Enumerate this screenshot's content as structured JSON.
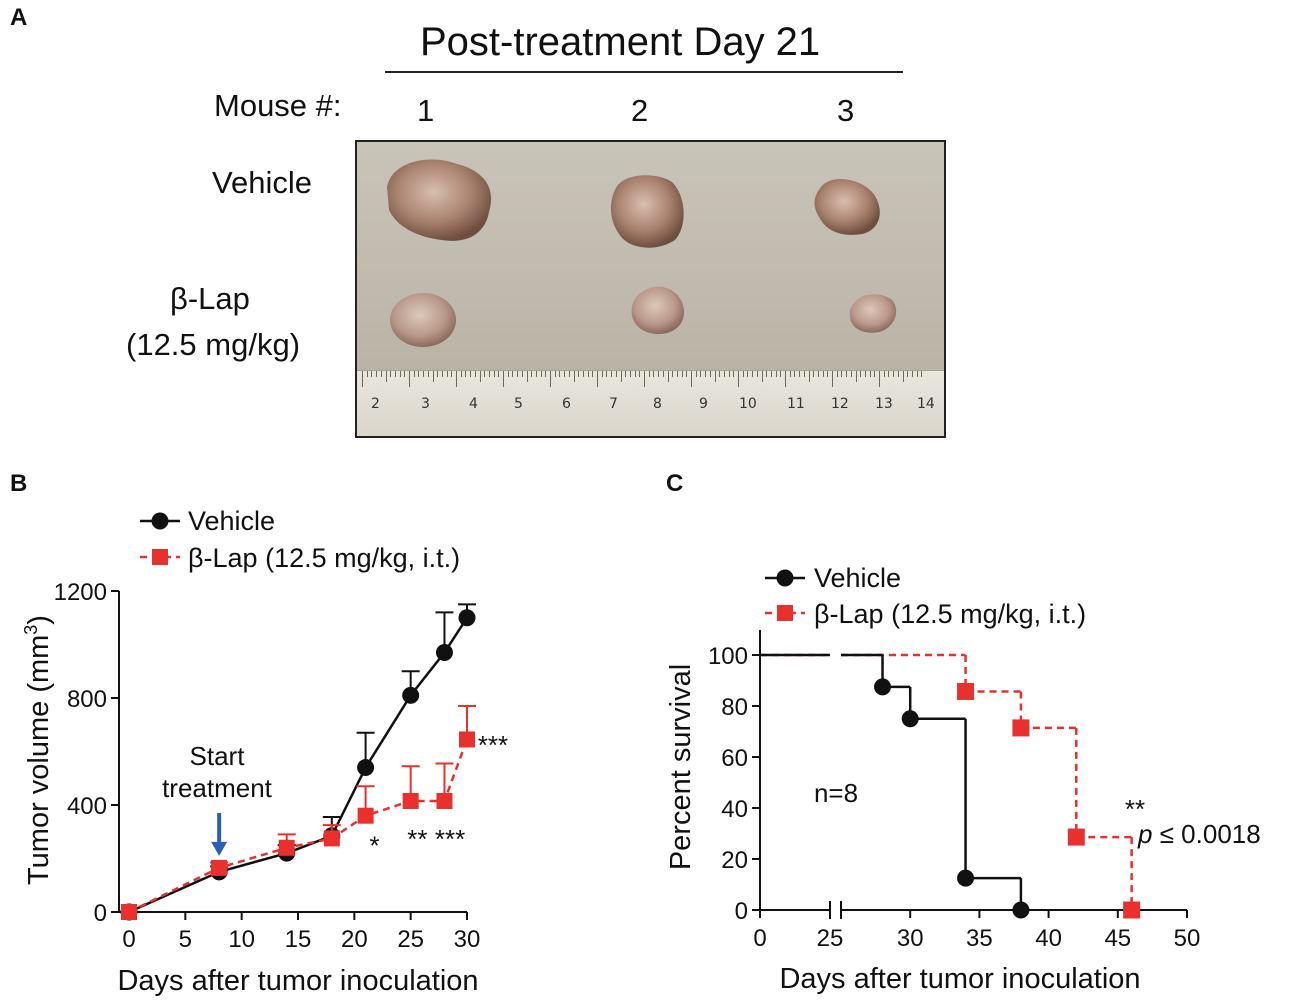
{
  "panel_a": {
    "letter": "A",
    "title": "Post-treatment Day 21",
    "mouse_label": "Mouse #:",
    "mice": [
      "1",
      "2",
      "3"
    ],
    "row_vehicle": "Vehicle",
    "row_drug_name": "β-Lap",
    "row_drug_dose": "(12.5 mg/kg)",
    "ruler_numbers": [
      "2",
      "3",
      "4",
      "5",
      "6",
      "7",
      "8",
      "9",
      "10",
      "11",
      "12",
      "13",
      "14"
    ]
  },
  "panel_b": {
    "letter": "B",
    "annotation_line1": "Start",
    "annotation_line2": "treatment",
    "arrow_color": "#2b5fb4"
  },
  "panel_c": {
    "letter": "C",
    "n_label": "n=8",
    "sig": "**",
    "p_symbol": "p",
    "p_rest": " ≤ 0.0018"
  },
  "colors": {
    "vehicle": "#111111",
    "drug": "#e8302c"
  },
  "chart_data": [
    {
      "type": "line",
      "panel": "B",
      "title": "",
      "xlabel": "Days after tumor inoculation",
      "ylabel": "Tumor volume (mm³)",
      "ylabel_main": "Tumor volume (mm",
      "ylabel_sup": "3",
      "ylabel_close": ")",
      "xlim": [
        0,
        30
      ],
      "ylim": [
        0,
        1200
      ],
      "xticks": [
        0,
        5,
        10,
        15,
        20,
        25,
        30
      ],
      "yticks": [
        0,
        400,
        800,
        1200
      ],
      "legend": "top-left",
      "series": [
        {
          "name": "Vehicle",
          "x": [
            0,
            8,
            14,
            18,
            21,
            25,
            28,
            30
          ],
          "y": [
            0,
            150,
            220,
            285,
            540,
            810,
            970,
            1100
          ],
          "err": [
            0,
            20,
            30,
            70,
            130,
            90,
            150,
            50
          ]
        },
        {
          "name": "β-Lap (12.5 mg/kg, i.t.)",
          "x": [
            0,
            8,
            14,
            18,
            21,
            25,
            28,
            30
          ],
          "y": [
            0,
            165,
            240,
            275,
            360,
            415,
            415,
            645
          ],
          "err": [
            0,
            20,
            50,
            50,
            110,
            130,
            140,
            125
          ]
        }
      ],
      "significance": [
        {
          "x": 21.8,
          "y": 215,
          "label": "*"
        },
        {
          "x": 25.6,
          "y": 240,
          "label": "**"
        },
        {
          "x": 28.5,
          "y": 240,
          "label": "***"
        },
        {
          "x": 32.3,
          "y": 590,
          "label": "***"
        }
      ],
      "annotation": {
        "x": 8,
        "y_top": 370,
        "y_bottom": 210
      }
    },
    {
      "type": "step",
      "panel": "C",
      "title": "",
      "xlabel": "Days after tumor inoculation",
      "ylabel": "Percent survival",
      "xlim": [
        0,
        50
      ],
      "ylim": [
        0,
        100
      ],
      "xticks": [
        0,
        25,
        30,
        35,
        40,
        45,
        50
      ],
      "yticks": [
        0,
        20,
        40,
        60,
        80,
        100
      ],
      "axis_break": [
        25,
        26.5
      ],
      "legend": "top-left",
      "series": [
        {
          "name": "Vehicle",
          "steps": [
            [
              0,
              100
            ],
            [
              28,
              87.5
            ],
            [
              30,
              75
            ],
            [
              34,
              12.5
            ],
            [
              38,
              0
            ]
          ],
          "markers": [
            [
              28,
              87.5
            ],
            [
              30,
              75
            ],
            [
              34,
              12.5
            ],
            [
              38,
              0
            ]
          ]
        },
        {
          "name": "β-Lap (12.5 mg/kg, i.t.)",
          "steps": [
            [
              0,
              100
            ],
            [
              34,
              85.7
            ],
            [
              38,
              71.4
            ],
            [
              42,
              28.6
            ],
            [
              46,
              0
            ]
          ],
          "markers": [
            [
              34,
              85.7
            ],
            [
              38,
              71.4
            ],
            [
              42,
              28.6
            ],
            [
              46,
              0
            ]
          ]
        }
      ]
    }
  ]
}
